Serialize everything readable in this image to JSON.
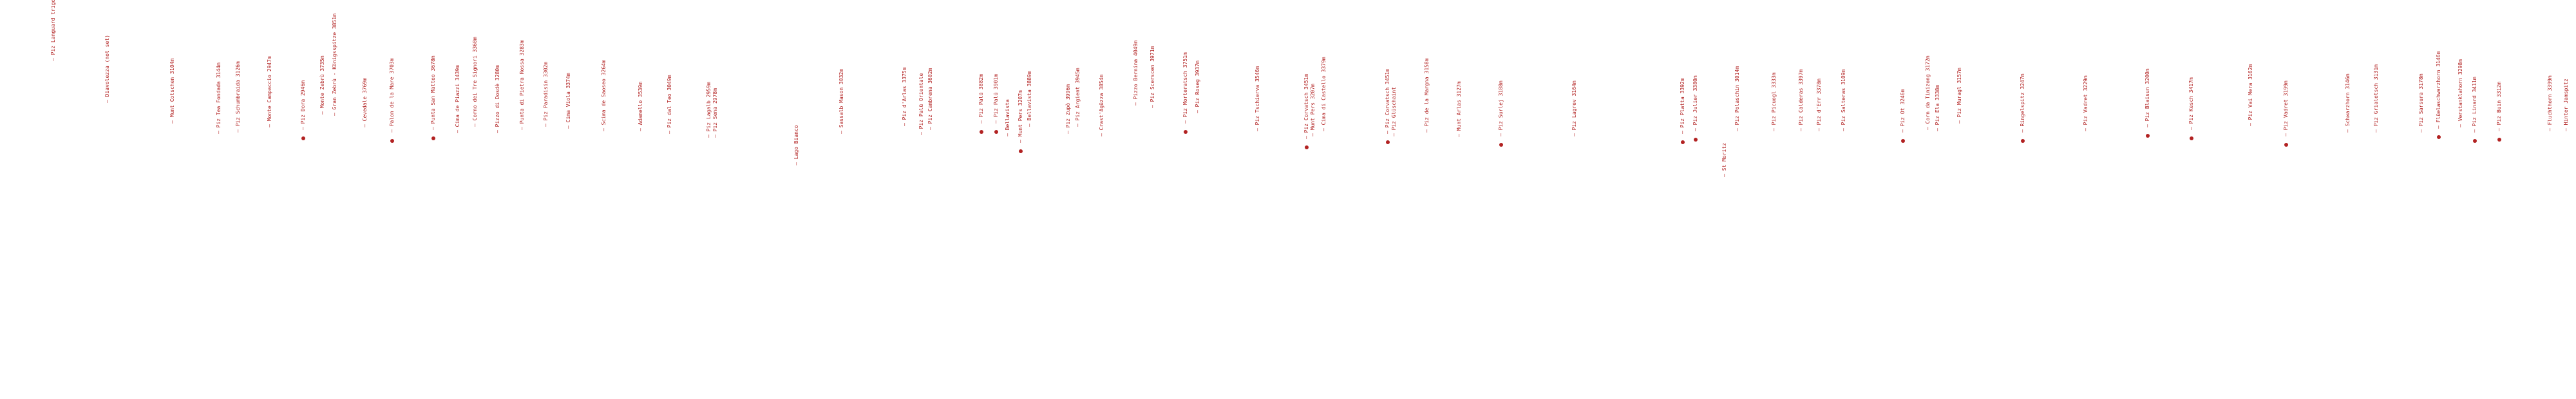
{
  "peaks": [
    {
      "name": "Piz Languard trigonometric point",
      "marker": false
    },
    {
      "name": "Diavolezza (not set)",
      "marker": false
    },
    {
      "name": "Munt Cotschen 3104m",
      "marker": false
    },
    {
      "name": "Piz Tea Fondada 3144m",
      "marker": false
    },
    {
      "name": "Piz Schumbraida 3126m",
      "marker": false
    },
    {
      "name": "Monte Campaccio 2947m",
      "marker": false
    },
    {
      "name": "Piz Dora 2946m",
      "marker": true
    },
    {
      "name": "Monte Zebrù 3735m",
      "marker": false
    },
    {
      "name": "Gran Zebrù - Königsspitze 3851m",
      "marker": false
    },
    {
      "name": "Cevedale 3769m",
      "marker": false
    },
    {
      "name": "Palon de la Mare 3703m",
      "marker": true
    },
    {
      "name": "Punta San Matteo 3678m",
      "marker": true
    },
    {
      "name": "Cima de Piazzi 3439m",
      "marker": false
    },
    {
      "name": "Corno dei Tre Signori 3360m",
      "marker": false
    },
    {
      "name": "Pizzo di Dosdè 3280m",
      "marker": false
    },
    {
      "name": "Punta di Pietra Rossa 3283m",
      "marker": false
    },
    {
      "name": "Piz Paradisin 3302m",
      "marker": false
    },
    {
      "name": "Cima Viola 3374m",
      "marker": false
    },
    {
      "name": "Scima de Saoseo 3264m",
      "marker": false
    },
    {
      "name": "Adamello 3539m",
      "marker": false
    },
    {
      "name": "Piz dal Teo 3049m",
      "marker": false
    },
    {
      "name": "Piz Lagalb 2959m",
      "marker": false
    },
    {
      "name": "Piz Sena 2978m",
      "marker": false
    },
    {
      "name": "Lago Bianco",
      "marker": false
    },
    {
      "name": "Sassalb Mason 3032m",
      "marker": false
    },
    {
      "name": "Piz d'Arlas 3375m",
      "marker": false
    },
    {
      "name": "Piz Palü Orientale",
      "marker": false
    },
    {
      "name": "Piz Cambrena 3602m",
      "marker": false
    },
    {
      "name": "Piz Palü 3882m",
      "marker": true
    },
    {
      "name": "Piz Palü 3901m",
      "marker": true
    },
    {
      "name": "Bellavista",
      "marker": false
    },
    {
      "name": "Munt Pers 3207m",
      "marker": true
    },
    {
      "name": "Bellavista 3889m",
      "marker": false
    },
    {
      "name": "Piz Zupò 3996m",
      "marker": false
    },
    {
      "name": "Piz Argient 3945m",
      "marker": false
    },
    {
      "name": "Crast'Agüzza 3854m",
      "marker": false
    },
    {
      "name": "Pizzo Bernina 4049m",
      "marker": false
    },
    {
      "name": "Piz Scerscen 3971m",
      "marker": false
    },
    {
      "name": "Piz Morteratsch 3751m",
      "marker": true
    },
    {
      "name": "Piz Roseg 3937m",
      "marker": false
    },
    {
      "name": "Piz Tschierva 3546m",
      "marker": false
    },
    {
      "name": "Piz Corvatsch 3451m",
      "marker": true
    },
    {
      "name": "Munt Pers 3207m",
      "marker": false
    },
    {
      "name": "Cima di Castello 3379m",
      "marker": false
    },
    {
      "name": "Piz Corvatsch 3451m",
      "marker": true
    },
    {
      "name": "Piz Glüschaint",
      "marker": false
    },
    {
      "name": "Piz de la Margna 3158m",
      "marker": false
    },
    {
      "name": "Munt Arlas 3127m",
      "marker": false
    },
    {
      "name": "Piz Surlej 3188m",
      "marker": true
    },
    {
      "name": "Piz Lagrev 3164m",
      "marker": false
    },
    {
      "name": "Piz Platta 3392m",
      "marker": true
    },
    {
      "name": "Piz Julier 3380m",
      "marker": true
    },
    {
      "name": "St Moritz",
      "marker": false
    },
    {
      "name": "Piz Polaschin 3014m",
      "marker": false
    },
    {
      "name": "Piz Picuogl 3333m",
      "marker": false
    },
    {
      "name": "Piz Calderas 3397m",
      "marker": false
    },
    {
      "name": "Piz d'Err 3378m",
      "marker": false
    },
    {
      "name": "Piz Salteras 3109m",
      "marker": false
    },
    {
      "name": "Piz Ot 3246m",
      "marker": true
    },
    {
      "name": "Corn da Tinizong 3172m",
      "marker": false
    },
    {
      "name": "Piz Ela 3338m",
      "marker": false
    },
    {
      "name": "Piz Muragl 3157m",
      "marker": false
    },
    {
      "name": "Ringelspitz 3247m",
      "marker": true
    },
    {
      "name": "Piz Vadret 3229m",
      "marker": false
    },
    {
      "name": "Piz Blaisun 3200m",
      "marker": true
    },
    {
      "name": "Piz Kesch 3417m",
      "marker": true
    },
    {
      "name": "Piz Vai Mera 3162m",
      "marker": false
    },
    {
      "name": "Piz Vadret 3199m",
      "marker": true
    },
    {
      "name": "Schwarzhorn 3146m",
      "marker": false
    },
    {
      "name": "Piz Grialetsch 3131m",
      "marker": false
    },
    {
      "name": "Piz Sarsura 3178m",
      "marker": false
    },
    {
      "name": "Flüelaschwarzhorn 3146m",
      "marker": true
    },
    {
      "name": "Verstanklahorn 3298m",
      "marker": false
    },
    {
      "name": "Piz Linard 3411m",
      "marker": true
    },
    {
      "name": "Piz Buin 3312m",
      "marker": true
    },
    {
      "name": "Fluchthorn 3399m",
      "marker": false
    },
    {
      "name": "Hinter Jamspitz",
      "marker": false
    }
  ]
}
